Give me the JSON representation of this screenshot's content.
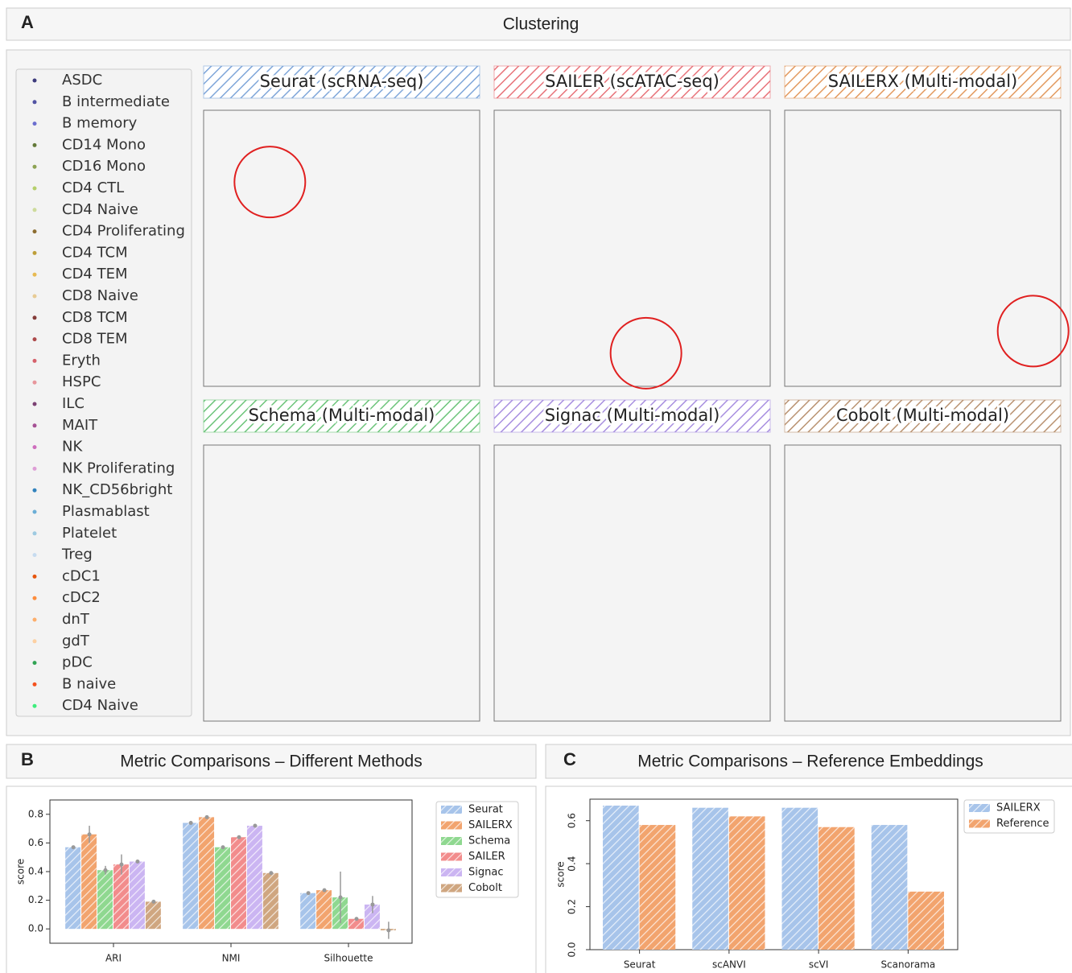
{
  "panel_a": {
    "label": "A",
    "title": "Clustering",
    "legend": [
      {
        "name": "ASDC",
        "color": "#3d3b7c"
      },
      {
        "name": "B intermediate",
        "color": "#5254a3"
      },
      {
        "name": "B memory",
        "color": "#6b6ecf"
      },
      {
        "name": "CD14 Mono",
        "color": "#637939"
      },
      {
        "name": "CD16 Mono",
        "color": "#8ca252"
      },
      {
        "name": "CD4 CTL",
        "color": "#b5cf6b"
      },
      {
        "name": "CD4 Naive",
        "color": "#cedb9c"
      },
      {
        "name": "CD4 Proliferating",
        "color": "#8c6d31"
      },
      {
        "name": "CD4 TCM",
        "color": "#bd9e39"
      },
      {
        "name": "CD4 TEM",
        "color": "#e7ba52"
      },
      {
        "name": "CD8 Naive",
        "color": "#e7cb94"
      },
      {
        "name": "CD8 TCM",
        "color": "#843c39"
      },
      {
        "name": "CD8 TEM",
        "color": "#ad494a"
      },
      {
        "name": "Eryth",
        "color": "#d6616b"
      },
      {
        "name": "HSPC",
        "color": "#e7969c"
      },
      {
        "name": "ILC",
        "color": "#7b4173"
      },
      {
        "name": "MAIT",
        "color": "#a55194"
      },
      {
        "name": "NK",
        "color": "#ce6dbd"
      },
      {
        "name": "NK Proliferating",
        "color": "#de9ed6"
      },
      {
        "name": "NK_CD56bright",
        "color": "#3182bd"
      },
      {
        "name": "Plasmablast",
        "color": "#6baed6"
      },
      {
        "name": "Platelet",
        "color": "#9ecae1"
      },
      {
        "name": "Treg",
        "color": "#c6dbef"
      },
      {
        "name": "cDC1",
        "color": "#e6550d"
      },
      {
        "name": "cDC2",
        "color": "#fd8d3c"
      },
      {
        "name": "dnT",
        "color": "#fdae6b"
      },
      {
        "name": "gdT",
        "color": "#fdd0a2"
      },
      {
        "name": "pDC",
        "color": "#31a354"
      },
      {
        "name": "B naive",
        "color": "#f4511e"
      },
      {
        "name": "CD4 Naive",
        "color": "#3ded7c"
      }
    ],
    "plots": [
      {
        "title": "Seurat (scRNA-seq)",
        "color": "#7fa6d9"
      },
      {
        "title": "SAILER (scATAC-seq)",
        "color": "#e8737a"
      },
      {
        "title": "SAILERX (Multi-modal)",
        "color": "#e39a5f"
      },
      {
        "title": "Schema (Multi-modal)",
        "color": "#6cc47a"
      },
      {
        "title": "Signac (Multi-modal)",
        "color": "#a88fe0"
      },
      {
        "title": "Cobolt (Multi-modal)",
        "color": "#b99271"
      }
    ]
  },
  "chart_data": [
    {
      "type": "bar",
      "panel": "B",
      "title": "Metric Comparisons – Different Methods",
      "ylabel": "score",
      "categories": [
        "ARI",
        "NMI",
        "Silhouette"
      ],
      "series": [
        {
          "name": "Seurat",
          "color": "#a7c4ea",
          "values": [
            0.57,
            0.74,
            0.25
          ],
          "errors": [
            0.01,
            0.01,
            0.01
          ]
        },
        {
          "name": "SAILERX",
          "color": "#f2a46e",
          "values": [
            0.66,
            0.78,
            0.27
          ],
          "errors": [
            0.06,
            0.01,
            0.01
          ]
        },
        {
          "name": "Schema",
          "color": "#8fd890",
          "values": [
            0.41,
            0.57,
            0.22
          ],
          "errors": [
            0.03,
            0.01,
            0.18
          ]
        },
        {
          "name": "SAILER",
          "color": "#f28c8c",
          "values": [
            0.45,
            0.64,
            0.07
          ],
          "errors": [
            0.07,
            0.01,
            0.01
          ]
        },
        {
          "name": "Signac",
          "color": "#cbb5f2",
          "values": [
            0.47,
            0.72,
            0.17
          ],
          "errors": [
            0.01,
            0.01,
            0.06
          ]
        },
        {
          "name": "Cobolt",
          "color": "#cfa680",
          "values": [
            0.19,
            0.39,
            -0.01
          ],
          "errors": [
            0.01,
            0.01,
            0.06
          ]
        }
      ],
      "ylim": [
        -0.1,
        0.9
      ],
      "yticks": [
        {
          "value": 0,
          "label": "0.0"
        },
        {
          "value": 0.2,
          "label": "0.2"
        },
        {
          "value": 0.4,
          "label": "0.4"
        },
        {
          "value": 0.6,
          "label": "0.6"
        },
        {
          "value": 0.8,
          "label": "0.8"
        }
      ]
    },
    {
      "type": "bar",
      "panel": "C",
      "title": "Metric Comparisons – Reference Embeddings",
      "ylabel": "score",
      "categories": [
        "Seurat",
        "scANVI",
        "scVI",
        "Scanorama"
      ],
      "series": [
        {
          "name": "SAILERX",
          "color": "#a7c4ea",
          "values": [
            0.67,
            0.66,
            0.66,
            0.58
          ]
        },
        {
          "name": "Reference",
          "color": "#f2a46e",
          "values": [
            0.58,
            0.62,
            0.57,
            0.27
          ]
        }
      ],
      "ylim": [
        0,
        0.7
      ],
      "yticks": [
        {
          "value": 0,
          "label": "0.0"
        },
        {
          "value": 0.2,
          "label": "0.2"
        },
        {
          "value": 0.4,
          "label": "0.4"
        },
        {
          "value": 0.6,
          "label": "0.6"
        }
      ]
    }
  ]
}
